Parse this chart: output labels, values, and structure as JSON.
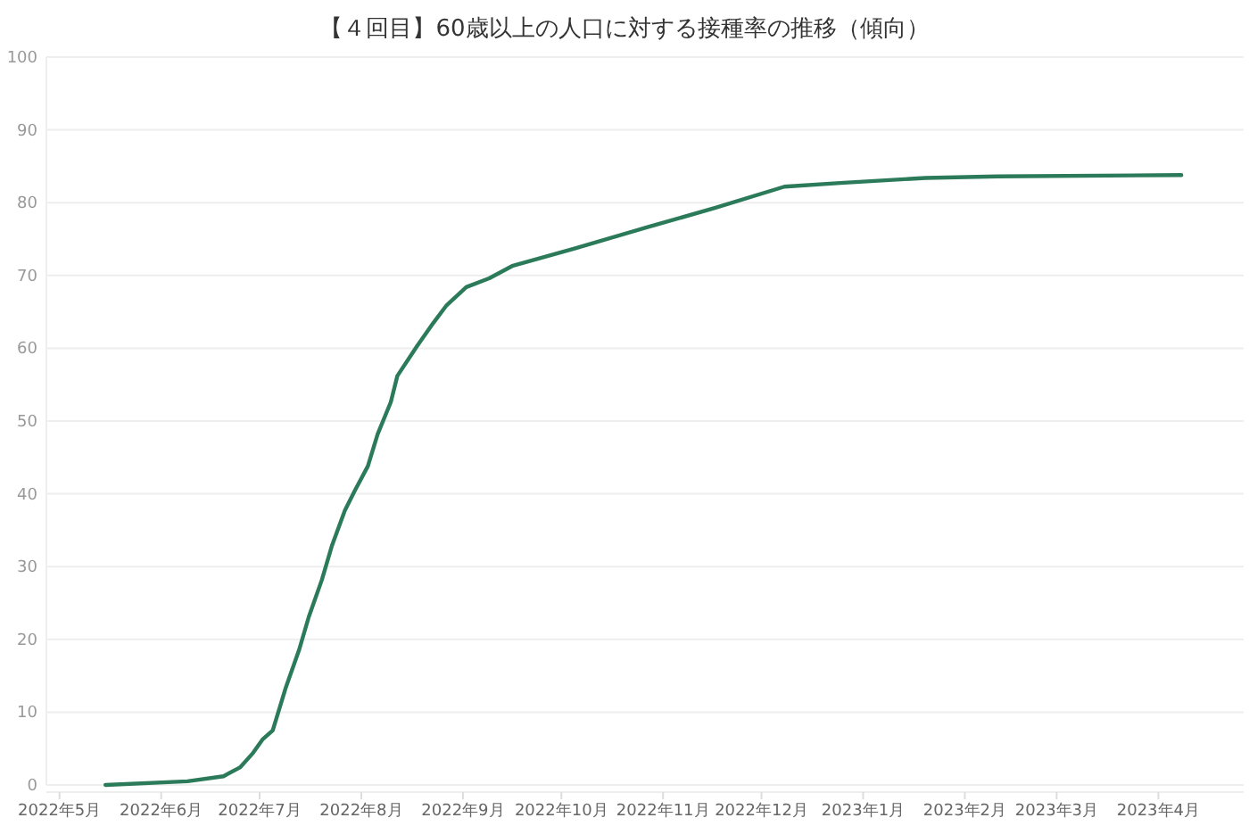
{
  "chart_data": {
    "type": "line",
    "title": "【４回目】60歳以上の人口に対する接種率の推移（傾向）",
    "x": [
      "2022-05-15",
      "2022-06-09",
      "2022-06-20",
      "2022-06-25",
      "2022-06-29",
      "2022-07-02",
      "2022-07-05",
      "2022-07-09",
      "2022-07-13",
      "2022-07-16",
      "2022-07-20",
      "2022-07-23",
      "2022-07-27",
      "2022-07-30",
      "2022-08-03",
      "2022-08-06",
      "2022-08-10",
      "2022-08-12",
      "2022-08-18",
      "2022-08-23",
      "2022-08-27",
      "2022-09-02",
      "2022-09-09",
      "2022-09-16",
      "2022-10-05",
      "2022-10-27",
      "2022-11-17",
      "2022-12-08",
      "2022-12-25",
      "2023-01-20",
      "2023-02-11",
      "2023-04-08"
    ],
    "series": [
      {
        "color": "#2b7a5a",
        "values": [
          0,
          0.5,
          1.2,
          2.4,
          4.4,
          6.3,
          7.5,
          13.4,
          18.5,
          23.1,
          28.2,
          32.8,
          37.7,
          40.4,
          43.8,
          48.2,
          52.6,
          56.2,
          60.3,
          63.5,
          65.9,
          68.4,
          69.6,
          71.3,
          73.7,
          76.6,
          79.3,
          82.2,
          82.7,
          83.4,
          83.6,
          83.8
        ]
      }
    ],
    "xlim": [
      "2022-04-27",
      "2023-04-27"
    ],
    "xticks": [
      {
        "value": "2022-05-01",
        "label": "2022年5月"
      },
      {
        "value": "2022-06-01",
        "label": "2022年6月"
      },
      {
        "value": "2022-07-01",
        "label": "2022年7月"
      },
      {
        "value": "2022-08-01",
        "label": "2022年8月"
      },
      {
        "value": "2022-09-01",
        "label": "2022年9月"
      },
      {
        "value": "2022-10-01",
        "label": "2022年10月"
      },
      {
        "value": "2022-11-01",
        "label": "2022年11月"
      },
      {
        "value": "2022-12-01",
        "label": "2022年12月"
      },
      {
        "value": "2023-01-01",
        "label": "2023年1月"
      },
      {
        "value": "2023-02-01",
        "label": "2023年2月"
      },
      {
        "value": "2023-03-01",
        "label": "2023年3月"
      },
      {
        "value": "2023-04-01",
        "label": "2023年4月"
      }
    ],
    "ylim": [
      0,
      100
    ],
    "yticks": [
      0,
      10,
      20,
      30,
      40,
      50,
      60,
      70,
      80,
      90,
      100
    ],
    "grid": "y",
    "marker": "none",
    "line_style": "solid"
  }
}
